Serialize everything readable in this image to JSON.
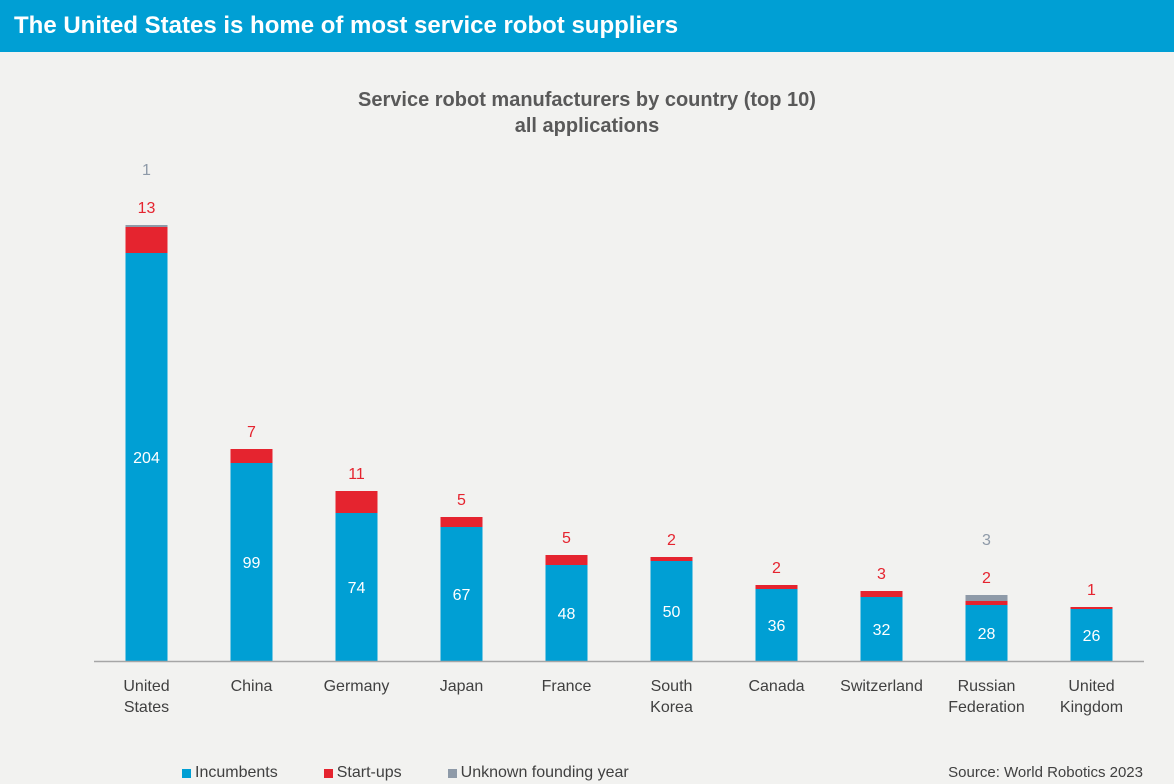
{
  "header": {
    "title": "The United States is home of most service robot suppliers"
  },
  "chart_data": {
    "type": "bar",
    "stacked": true,
    "title_lines": [
      "Service robot manufacturers by country (top 10)",
      "all applications"
    ],
    "categories": [
      [
        "United",
        "States"
      ],
      [
        "China"
      ],
      [
        "Germany"
      ],
      [
        "Japan"
      ],
      [
        "France"
      ],
      [
        "South",
        "Korea"
      ],
      [
        "Canada"
      ],
      [
        "Switzerland"
      ],
      [
        "Russian",
        "Federation"
      ],
      [
        "United",
        "Kingdom"
      ]
    ],
    "series": [
      {
        "name": "Incumbents",
        "color": "#009fd4",
        "label_color": "#ffffff",
        "values": [
          204,
          99,
          74,
          67,
          48,
          50,
          36,
          32,
          28,
          26
        ]
      },
      {
        "name": "Start-ups",
        "color": "#e5242f",
        "label_color": "#e5242f",
        "values": [
          13,
          7,
          11,
          5,
          5,
          2,
          2,
          3,
          2,
          1
        ]
      },
      {
        "name": "Unknown founding year",
        "color": "#8e9aa8",
        "label_color": "#8e9aa8",
        "values": [
          1,
          0,
          0,
          0,
          0,
          0,
          0,
          0,
          3,
          0
        ]
      }
    ],
    "ylim": [
      0,
      220
    ],
    "grid": false,
    "legend_position": "bottom"
  },
  "legend": {
    "items": [
      {
        "label": "Incumbents",
        "color": "#009fd4"
      },
      {
        "label": "Start-ups",
        "color": "#e5242f"
      },
      {
        "label": "Unknown founding year",
        "color": "#8e9aa8"
      }
    ]
  },
  "footer": {
    "source": "Source: World Robotics 2023"
  }
}
